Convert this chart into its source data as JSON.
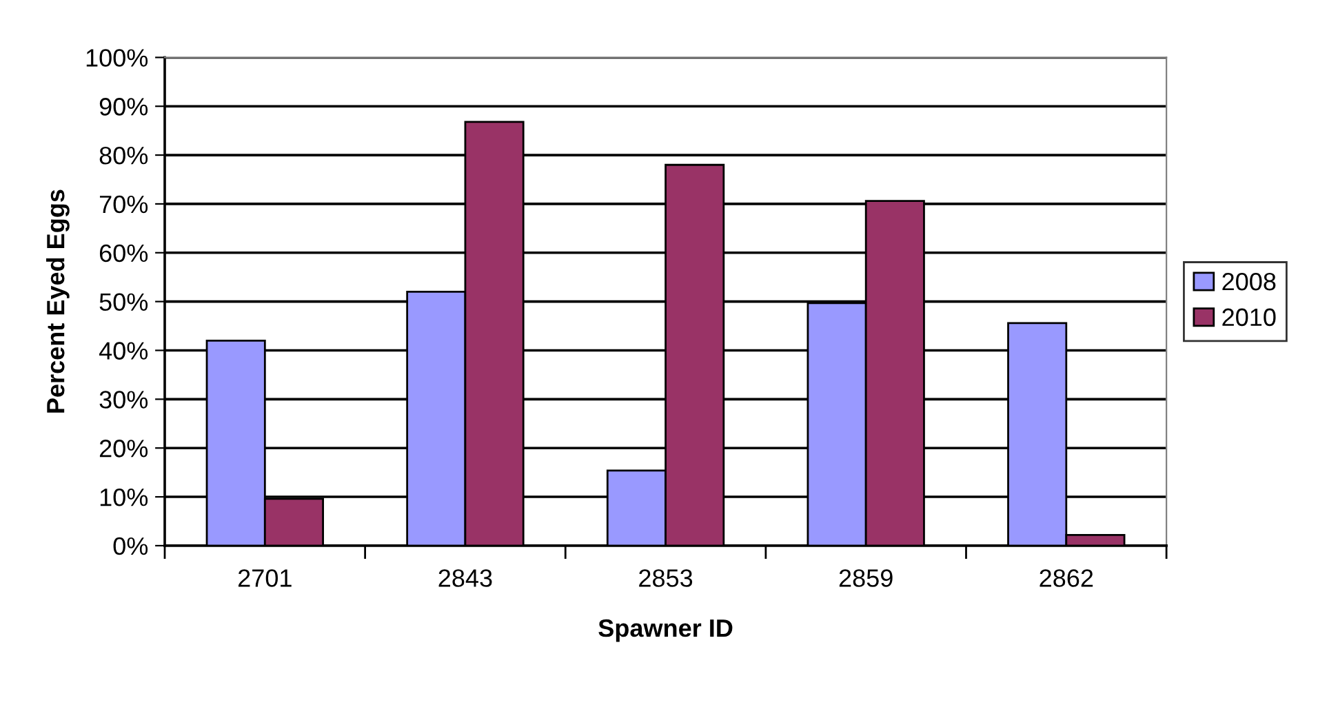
{
  "chart_data": {
    "type": "bar",
    "xlabel": "Spawner ID",
    "ylabel": "Percent Eyed Eggs",
    "categories": [
      "2701",
      "2843",
      "2853",
      "2859",
      "2862"
    ],
    "series": [
      {
        "name": "2008",
        "color": "#9999ff",
        "values": [
          42,
          52,
          15.4,
          49.7,
          45.6
        ]
      },
      {
        "name": "2010",
        "color": "#993366",
        "values": [
          9.6,
          86.8,
          78,
          70.6,
          2.2
        ]
      }
    ],
    "ylim": [
      0,
      100
    ],
    "yticks": [
      {
        "value": 0,
        "label": "0%"
      },
      {
        "value": 10,
        "label": "10%"
      },
      {
        "value": 20,
        "label": "20%"
      },
      {
        "value": 30,
        "label": "30%"
      },
      {
        "value": 40,
        "label": "40%"
      },
      {
        "value": 50,
        "label": "50%"
      },
      {
        "value": 60,
        "label": "60%"
      },
      {
        "value": 70,
        "label": "70%"
      },
      {
        "value": 80,
        "label": "80%"
      },
      {
        "value": 90,
        "label": "90%"
      },
      {
        "value": 100,
        "label": "100%"
      }
    ],
    "grid": "y",
    "legend": "right"
  }
}
